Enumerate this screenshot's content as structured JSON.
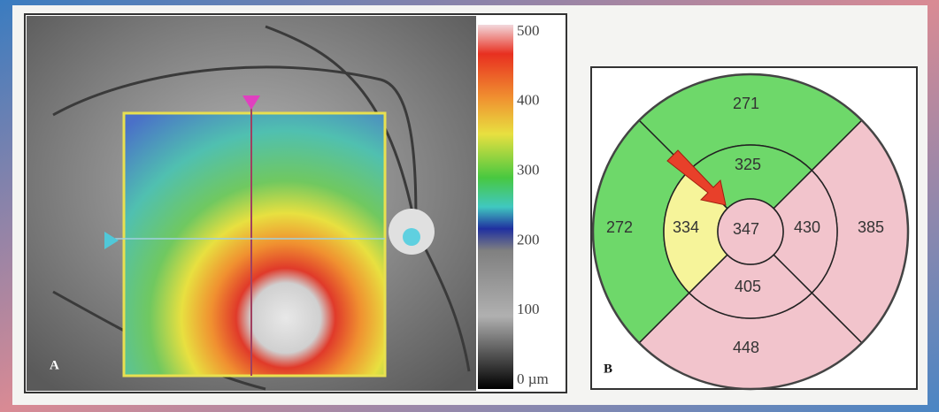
{
  "panel_a": {
    "label": "A",
    "scale_labels": [
      "500",
      "400",
      "300",
      "200",
      "100",
      "0 µm"
    ]
  },
  "panel_b": {
    "label": "B",
    "outer": {
      "superior": "271",
      "temporal": "272",
      "nasal": "385",
      "inferior": "448"
    },
    "inner": {
      "superior": "325",
      "temporal": "334",
      "nasal": "430",
      "inferior": "405"
    },
    "center": "347"
  }
}
